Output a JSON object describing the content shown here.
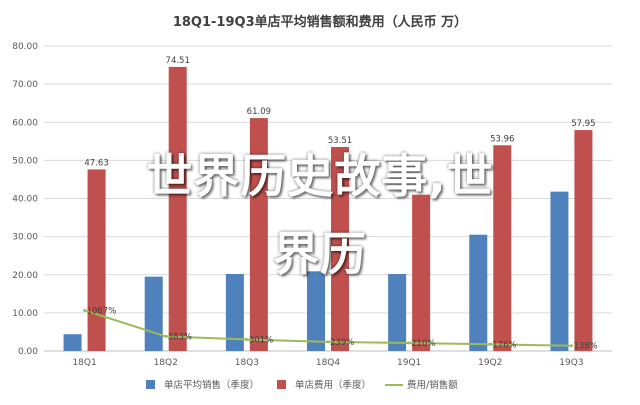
{
  "chart_data": {
    "type": "bar",
    "title": "18Q1-19Q3单店平均销售额和费用（人民币 万）",
    "categories": [
      "18Q1",
      "18Q2",
      "18Q3",
      "18Q4",
      "19Q1",
      "19Q2",
      "19Q3"
    ],
    "series": [
      {
        "name": "单店平均销售（季度）",
        "type": "bar",
        "color": "#4f81bd",
        "values": [
          4.4,
          19.5,
          20.2,
          20.9,
          20.2,
          30.5,
          41.8
        ],
        "labels": [
          "",
          "",
          "",
          "",
          "",
          "",
          ""
        ]
      },
      {
        "name": "单店费用（季度）",
        "type": "bar",
        "color": "#c0504d",
        "values": [
          47.63,
          74.51,
          61.09,
          53.51,
          41.0,
          53.96,
          57.95
        ],
        "labels": [
          "47.63",
          "74.51",
          "61.09",
          "53.51",
          "",
          "53.96",
          "57.95"
        ]
      },
      {
        "name": "费用/销售额",
        "type": "line",
        "color": "#9bbb59",
        "values": [
          10.67,
          3.83,
          3.01,
          2.39,
          2.1,
          1.76,
          1.38
        ],
        "labels": [
          "1067%",
          "383%",
          "301%",
          "239%",
          "210%",
          "176%",
          "138%"
        ]
      }
    ],
    "ylim": [
      0,
      80
    ],
    "yticks": [
      "0.00",
      "10.00",
      "20.00",
      "30.00",
      "40.00",
      "50.00",
      "60.00",
      "70.00",
      "80.00"
    ],
    "grid": true,
    "legend": "bottom"
  },
  "overlay": {
    "line1": "世界历史故事,世",
    "line2": "界历"
  }
}
